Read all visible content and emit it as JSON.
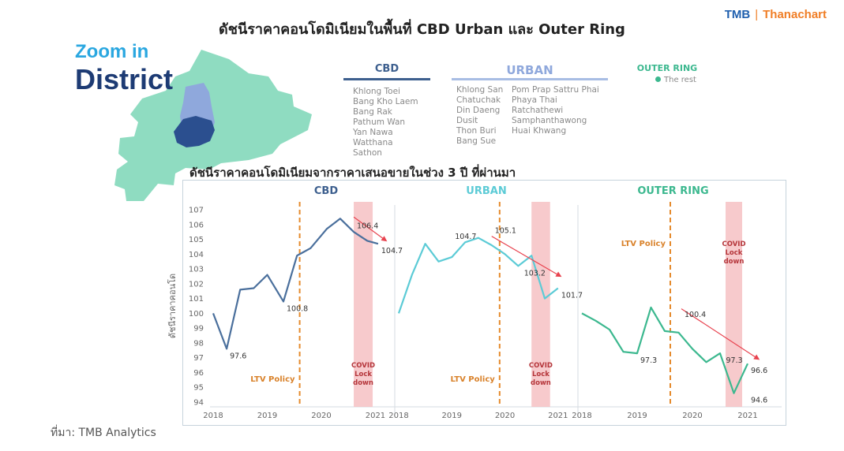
{
  "header": {
    "title": "ดัชนีราคาคอนโดมิเนียมในพื้นที่ CBD Urban และ Outer Ring",
    "logo_left": "TMB",
    "logo_separator": "|",
    "logo_right": "Thanachart"
  },
  "zoom": {
    "line1": "Zoom in",
    "line2": "District"
  },
  "colors": {
    "cbd": "#4a6f9c",
    "urban": "#5ccbd6",
    "outer": "#3cb88f",
    "policy": "#e58a2c",
    "covid": "#f6c1c3",
    "arrow": "#e8434f",
    "map": "#8fdcc1"
  },
  "districts": {
    "cbd": {
      "title": "CBD",
      "items": [
        "Khlong Toei",
        "Bang Kho Laem",
        "Bang Rak",
        "Pathum Wan",
        "Yan Nawa",
        "Watthana",
        "Sathon"
      ]
    },
    "urban": {
      "title": "URBAN",
      "col1": [
        "Khlong San",
        "Chatuchak",
        "Din Daeng",
        "Dusit",
        "Thon Buri",
        "Bang Sue"
      ],
      "col2": [
        "Pom Prap Sattru Phai",
        "Phaya Thai",
        "Ratchathewi",
        "Samphanthawong",
        "Huai Khwang"
      ]
    },
    "outer": {
      "title": "OUTER RING",
      "legend": "The rest"
    }
  },
  "chart_title": "ดัชนีราคาคอนโดมิเนียมจากราคาเสนอขายในช่วง 3 ปี ที่ผ่านมา",
  "source": "ที่มา: TMB Analytics",
  "chart_data": {
    "type": "line",
    "ylabel": "ดัชนีราคาคอนโด",
    "ylim": [
      94,
      107
    ],
    "yticks": [
      94,
      95,
      96,
      97,
      98,
      99,
      100,
      101,
      102,
      103,
      104,
      105,
      106,
      107
    ],
    "xticks": [
      "2018",
      "2019",
      "2020",
      "2021"
    ],
    "xlim": [
      2018,
      2021.3
    ],
    "policy_label": "LTV Policy",
    "covid_label": [
      "COVID",
      "Lock",
      "down"
    ],
    "panels": [
      {
        "name": "CBD",
        "policy_x": 2019.6,
        "covid_x": [
          2020.6,
          2020.95
        ],
        "x": [
          2018.0,
          2018.25,
          2018.5,
          2018.75,
          2019.0,
          2019.3,
          2019.55,
          2019.8,
          2020.1,
          2020.35,
          2020.6,
          2020.85,
          2021.05
        ],
        "y": [
          100.0,
          97.6,
          101.6,
          101.7,
          102.6,
          100.8,
          103.9,
          104.4,
          105.7,
          106.4,
          105.5,
          104.9,
          104.7
        ],
        "labels": [
          {
            "x": 2018.25,
            "y": 97.6,
            "text": "97.6"
          },
          {
            "x": 2019.3,
            "y": 100.8,
            "text": "100.8"
          },
          {
            "x": 2020.6,
            "y": 106.4,
            "text": "106.4"
          },
          {
            "x": 2021.05,
            "y": 104.7,
            "text": "104.7"
          }
        ],
        "arrow": {
          "from": [
            2020.6,
            106.4
          ],
          "to": [
            2021.2,
            104.9
          ]
        }
      },
      {
        "name": "URBAN",
        "policy_x": 2019.9,
        "covid_x": [
          2020.5,
          2020.85
        ],
        "x": [
          2018.0,
          2018.25,
          2018.5,
          2018.75,
          2019.0,
          2019.25,
          2019.5,
          2019.75,
          2020.0,
          2020.25,
          2020.5,
          2020.75,
          2021.0
        ],
        "y": [
          100.0,
          102.6,
          104.7,
          103.5,
          103.8,
          104.8,
          105.1,
          104.6,
          104.0,
          103.2,
          103.9,
          101.0,
          101.7
        ],
        "labels": [
          {
            "x": 2019.0,
            "y": 104.7,
            "text": "104.7"
          },
          {
            "x": 2019.75,
            "y": 105.1,
            "text": "105.1"
          },
          {
            "x": 2020.3,
            "y": 103.2,
            "text": "103.2"
          },
          {
            "x": 2021.0,
            "y": 101.7,
            "text": "101.7"
          }
        ],
        "arrow": {
          "from": [
            2019.75,
            105.1
          ],
          "to": [
            2021.05,
            102.5
          ]
        }
      },
      {
        "name": "OUTER RING",
        "policy_x": 2019.6,
        "covid_x": [
          2020.6,
          2020.9
        ],
        "x": [
          2018.0,
          2018.25,
          2018.5,
          2018.75,
          2019.0,
          2019.25,
          2019.5,
          2019.75,
          2020.0,
          2020.25,
          2020.5,
          2020.75,
          2021.0
        ],
        "y": [
          100.0,
          99.5,
          98.9,
          97.4,
          97.3,
          100.4,
          98.8,
          98.7,
          97.6,
          96.7,
          97.3,
          94.6,
          96.6
        ],
        "labels": [
          {
            "x": 2019.0,
            "y": 97.3,
            "text": "97.3"
          },
          {
            "x": 2019.8,
            "y": 100.4,
            "text": "100.4"
          },
          {
            "x": 2020.55,
            "y": 97.3,
            "text": "97.3"
          },
          {
            "x": 2021.0,
            "y": 96.6,
            "text": "96.6"
          },
          {
            "x": 2021.0,
            "y": 94.6,
            "text": "94.6"
          }
        ],
        "arrow": {
          "from": [
            2019.8,
            100.2
          ],
          "to": [
            2021.2,
            96.9
          ]
        }
      }
    ]
  }
}
